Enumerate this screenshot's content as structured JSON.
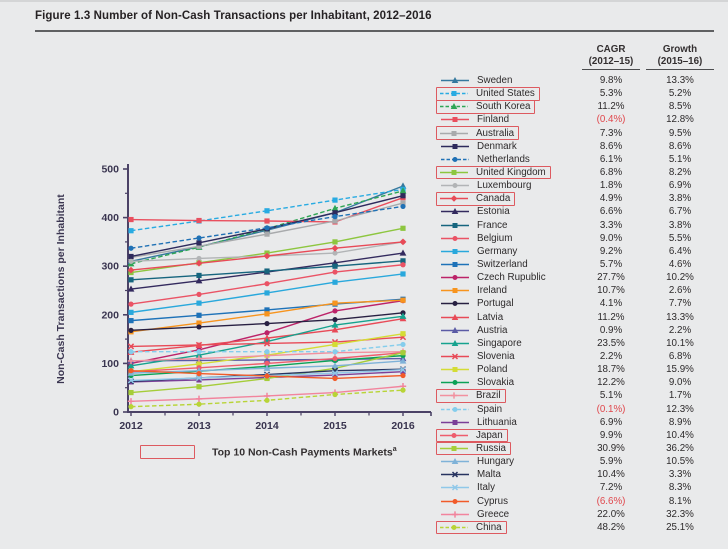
{
  "figure": {
    "title": "Figure 1.3 Number of Non-Cash Transactions per Inhabitant, 2012–2016"
  },
  "note": {
    "label": "Top 10 Non-Cash Payments Markets",
    "sup": "a"
  },
  "legend": {
    "header_cagr_line1": "CAGR",
    "header_cagr_line2": "(2012–15)",
    "header_growth_line1": "Growth",
    "header_growth_line2": "(2015–16)"
  },
  "colors": {
    "axis": "#4b4266",
    "tick_label": "#3a3550",
    "top10_box": "#dd5a60",
    "negative_value": "#e0474c"
  },
  "chart_data": {
    "type": "line",
    "title": "Number of Non-Cash Transactions per Inhabitant, 2012–2016",
    "ylabel": "Non-Cash Transactions per Inhabitant",
    "xlabel": "",
    "x": [
      2012,
      2013,
      2014,
      2015,
      2016
    ],
    "ylim": [
      0,
      500
    ],
    "yticks": [
      0,
      100,
      200,
      300,
      400,
      500
    ],
    "grid": false,
    "legend_position": "right",
    "series": [
      {
        "name": "Sweden",
        "cagr_2012_15": "9.8%",
        "growth_2015_16": "13.3%",
        "color": "#35789e",
        "marker": "triangle",
        "dashed": false,
        "boxed": false,
        "values": [
          310,
          340,
          374,
          410,
          465
        ]
      },
      {
        "name": "United States",
        "cagr_2012_15": "5.3%",
        "growth_2015_16": "5.2%",
        "color": "#29abe2",
        "marker": "square",
        "dashed": true,
        "boxed": true,
        "values": [
          373,
          393,
          414,
          436,
          458
        ]
      },
      {
        "name": "South Korea",
        "cagr_2012_15": "11.2%",
        "growth_2015_16": "8.5%",
        "color": "#2fa555",
        "marker": "triangle",
        "dashed": true,
        "boxed": true,
        "values": [
          305,
          339,
          377,
          419,
          455
        ]
      },
      {
        "name": "Finland",
        "cagr_2012_15": "(0.4%)",
        "growth_2015_16": "12.8%",
        "color": "#e94f5e",
        "marker": "square",
        "dashed": false,
        "boxed": false,
        "values": [
          396,
          394,
          393,
          391,
          441
        ]
      },
      {
        "name": "Australia",
        "cagr_2012_15": "7.3%",
        "growth_2015_16": "9.5%",
        "color": "#a8aaac",
        "marker": "square",
        "dashed": false,
        "boxed": true,
        "values": [
          318,
          341,
          366,
          393,
          430
        ]
      },
      {
        "name": "Denmark",
        "cagr_2012_15": "8.6%",
        "growth_2015_16": "8.6%",
        "color": "#2e2a5c",
        "marker": "square",
        "dashed": false,
        "boxed": false,
        "values": [
          320,
          348,
          377,
          410,
          445
        ]
      },
      {
        "name": "Netherlands",
        "cagr_2012_15": "6.1%",
        "growth_2015_16": "5.1%",
        "color": "#2071b5",
        "marker": "circle",
        "dashed": true,
        "boxed": false,
        "values": [
          337,
          358,
          379,
          402,
          423
        ]
      },
      {
        "name": "United Kingdom",
        "cagr_2012_15": "6.8%",
        "growth_2015_16": "8.2%",
        "color": "#8dc63f",
        "marker": "square",
        "dashed": false,
        "boxed": true,
        "values": [
          287,
          307,
          327,
          350,
          378
        ]
      },
      {
        "name": "Luxembourg",
        "cagr_2012_15": "1.8%",
        "growth_2015_16": "6.9%",
        "color": "#b2b4b6",
        "marker": "circle",
        "dashed": false,
        "boxed": false,
        "values": [
          310,
          316,
          321,
          327,
          350
        ]
      },
      {
        "name": "Canada",
        "cagr_2012_15": "4.9%",
        "growth_2015_16": "3.8%",
        "color": "#e84a57",
        "marker": "diamond",
        "dashed": false,
        "boxed": true,
        "values": [
          292,
          306,
          321,
          337,
          350
        ]
      },
      {
        "name": "Estonia",
        "cagr_2012_15": "6.6%",
        "growth_2015_16": "6.7%",
        "color": "#332a5e",
        "marker": "triangle",
        "dashed": false,
        "boxed": false,
        "values": [
          253,
          270,
          288,
          307,
          327
        ]
      },
      {
        "name": "France",
        "cagr_2012_15": "3.3%",
        "growth_2015_16": "3.8%",
        "color": "#16657e",
        "marker": "square",
        "dashed": false,
        "boxed": false,
        "values": [
          272,
          281,
          290,
          300,
          311
        ]
      },
      {
        "name": "Belgium",
        "cagr_2012_15": "9.0%",
        "growth_2015_16": "5.5%",
        "color": "#ea5365",
        "marker": "circle",
        "dashed": false,
        "boxed": false,
        "values": [
          222,
          242,
          264,
          288,
          303
        ]
      },
      {
        "name": "Germany",
        "cagr_2012_15": "9.2%",
        "growth_2015_16": "6.4%",
        "color": "#29a8dc",
        "marker": "square",
        "dashed": false,
        "boxed": false,
        "values": [
          205,
          224,
          245,
          267,
          284
        ]
      },
      {
        "name": "Switzerland",
        "cagr_2012_15": "5.7%",
        "growth_2015_16": "4.6%",
        "color": "#1e72b8",
        "marker": "square",
        "dashed": false,
        "boxed": false,
        "values": [
          188,
          199,
          210,
          222,
          232
        ]
      },
      {
        "name": "Czech Rupublic",
        "cagr_2012_15": "27.7%",
        "growth_2015_16": "10.2%",
        "color": "#bc2369",
        "marker": "circle",
        "dashed": false,
        "boxed": false,
        "values": [
          100,
          128,
          163,
          208,
          229
        ]
      },
      {
        "name": "Ireland",
        "cagr_2012_15": "10.7%",
        "growth_2015_16": "2.6%",
        "color": "#f7941e",
        "marker": "square",
        "dashed": false,
        "boxed": false,
        "values": [
          165,
          183,
          202,
          224,
          230
        ]
      },
      {
        "name": "Portugal",
        "cagr_2012_15": "4.1%",
        "growth_2015_16": "7.7%",
        "color": "#282042",
        "marker": "circle",
        "dashed": false,
        "boxed": false,
        "values": [
          168,
          175,
          182,
          190,
          204
        ]
      },
      {
        "name": "Latvia",
        "cagr_2012_15": "11.2%",
        "growth_2015_16": "13.3%",
        "color": "#e84a57",
        "marker": "triangle",
        "dashed": false,
        "boxed": false,
        "values": [
          123,
          137,
          152,
          169,
          192
        ]
      },
      {
        "name": "Austria",
        "cagr_2012_15": "0.9%",
        "growth_2015_16": "2.2%",
        "color": "#5b5ba5",
        "marker": "triangle",
        "dashed": false,
        "boxed": false,
        "values": [
          105,
          106,
          107,
          108,
          110
        ]
      },
      {
        "name": "Singapore",
        "cagr_2012_15": "23.5%",
        "growth_2015_16": "10.1%",
        "color": "#16a28e",
        "marker": "triangle",
        "dashed": false,
        "boxed": false,
        "values": [
          95,
          117,
          145,
          179,
          197
        ]
      },
      {
        "name": "Slovenia",
        "cagr_2012_15": "2.2%",
        "growth_2015_16": "6.8%",
        "color": "#e84a57",
        "marker": "x",
        "dashed": false,
        "boxed": false,
        "values": [
          135,
          138,
          141,
          144,
          154
        ]
      },
      {
        "name": "Poland",
        "cagr_2012_15": "18.7%",
        "growth_2015_16": "15.9%",
        "color": "#d4dc35",
        "marker": "square",
        "dashed": false,
        "boxed": false,
        "values": [
          83,
          99,
          117,
          139,
          161
        ]
      },
      {
        "name": "Slovakia",
        "cagr_2012_15": "12.2%",
        "growth_2015_16": "9.0%",
        "color": "#0ba156",
        "marker": "circle",
        "dashed": false,
        "boxed": false,
        "values": [
          75,
          84,
          94,
          106,
          116
        ]
      },
      {
        "name": "Brazil",
        "cagr_2012_15": "5.1%",
        "growth_2015_16": "1.7%",
        "color": "#f2919f",
        "marker": "plus",
        "dashed": false,
        "boxed": true,
        "values": [
          105,
          110,
          116,
          122,
          124
        ]
      },
      {
        "name": "Spain",
        "cagr_2012_15": "(0.1%)",
        "growth_2015_16": "12.3%",
        "color": "#85cdec",
        "marker": "circle",
        "dashed": true,
        "boxed": false,
        "values": [
          124,
          124,
          124,
          124,
          139
        ]
      },
      {
        "name": "Lithuania",
        "cagr_2012_15": "6.9%",
        "growth_2015_16": "8.9%",
        "color": "#7b3f98",
        "marker": "square",
        "dashed": false,
        "boxed": false,
        "values": [
          62,
          66,
          71,
          76,
          83
        ]
      },
      {
        "name": "Japan",
        "cagr_2012_15": "9.9%",
        "growth_2015_16": "10.4%",
        "color": "#ee5d6d",
        "marker": "circle",
        "dashed": false,
        "boxed": true,
        "values": [
          83,
          91,
          100,
          110,
          122
        ]
      },
      {
        "name": "Russia",
        "cagr_2012_15": "30.9%",
        "growth_2015_16": "36.2%",
        "color": "#a5cd39",
        "marker": "square",
        "dashed": false,
        "boxed": true,
        "values": [
          40,
          52,
          69,
          90,
          122
        ]
      },
      {
        "name": "Hungary",
        "cagr_2012_15": "5.9%",
        "growth_2015_16": "10.5%",
        "color": "#7fb2d8",
        "marker": "triangle",
        "dashed": false,
        "boxed": false,
        "values": [
          80,
          85,
          90,
          95,
          105
        ]
      },
      {
        "name": "Malta",
        "cagr_2012_15": "10.4%",
        "growth_2015_16": "3.3%",
        "color": "#27335f",
        "marker": "x",
        "dashed": false,
        "boxed": false,
        "values": [
          63,
          70,
          77,
          85,
          88
        ]
      },
      {
        "name": "Italy",
        "cagr_2012_15": "7.2%",
        "growth_2015_16": "8.3%",
        "color": "#90c8e9",
        "marker": "x",
        "dashed": false,
        "boxed": false,
        "values": [
          65,
          70,
          75,
          80,
          87
        ]
      },
      {
        "name": "Cyprus",
        "cagr_2012_15": "(6.6%)",
        "growth_2015_16": "8.1%",
        "color": "#f15b2a",
        "marker": "circle",
        "dashed": false,
        "boxed": false,
        "values": [
          85,
          79,
          74,
          69,
          75
        ]
      },
      {
        "name": "Greece",
        "cagr_2012_15": "22.0%",
        "growth_2015_16": "32.3%",
        "color": "#f2849d",
        "marker": "plus",
        "dashed": false,
        "boxed": false,
        "values": [
          22,
          27,
          33,
          40,
          53
        ]
      },
      {
        "name": "China",
        "cagr_2012_15": "48.2%",
        "growth_2015_16": "25.1%",
        "color": "#b8d437",
        "marker": "circle",
        "dashed": true,
        "boxed": true,
        "values": [
          11,
          16,
          24,
          36,
          45
        ]
      }
    ]
  }
}
